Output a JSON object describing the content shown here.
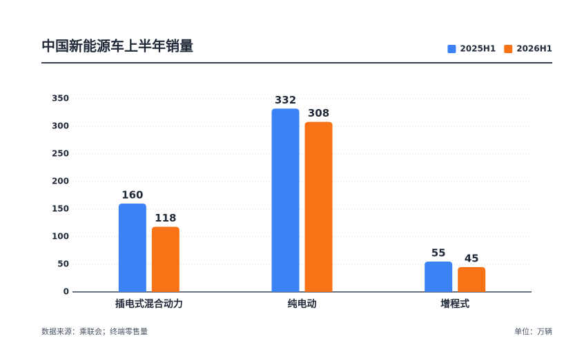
{
  "chart_data": {
    "type": "bar",
    "title": "中国新能源车上半年销量",
    "categories": [
      "插电式混合动力",
      "纯电动",
      "增程式"
    ],
    "series": [
      {
        "name": "2025H1",
        "color": "#3b82f6",
        "values": [
          160,
          332,
          55
        ]
      },
      {
        "name": "2026H1",
        "color": "#f97316",
        "values": [
          118,
          308,
          45
        ]
      }
    ],
    "ylim": [
      0,
      350
    ],
    "yticks": [
      0,
      50,
      100,
      150,
      200,
      250,
      300,
      350
    ],
    "grid": true,
    "legend": "top-right",
    "source": "数据来源：乘联会；终端零售量",
    "unit": "单位：万辆"
  }
}
